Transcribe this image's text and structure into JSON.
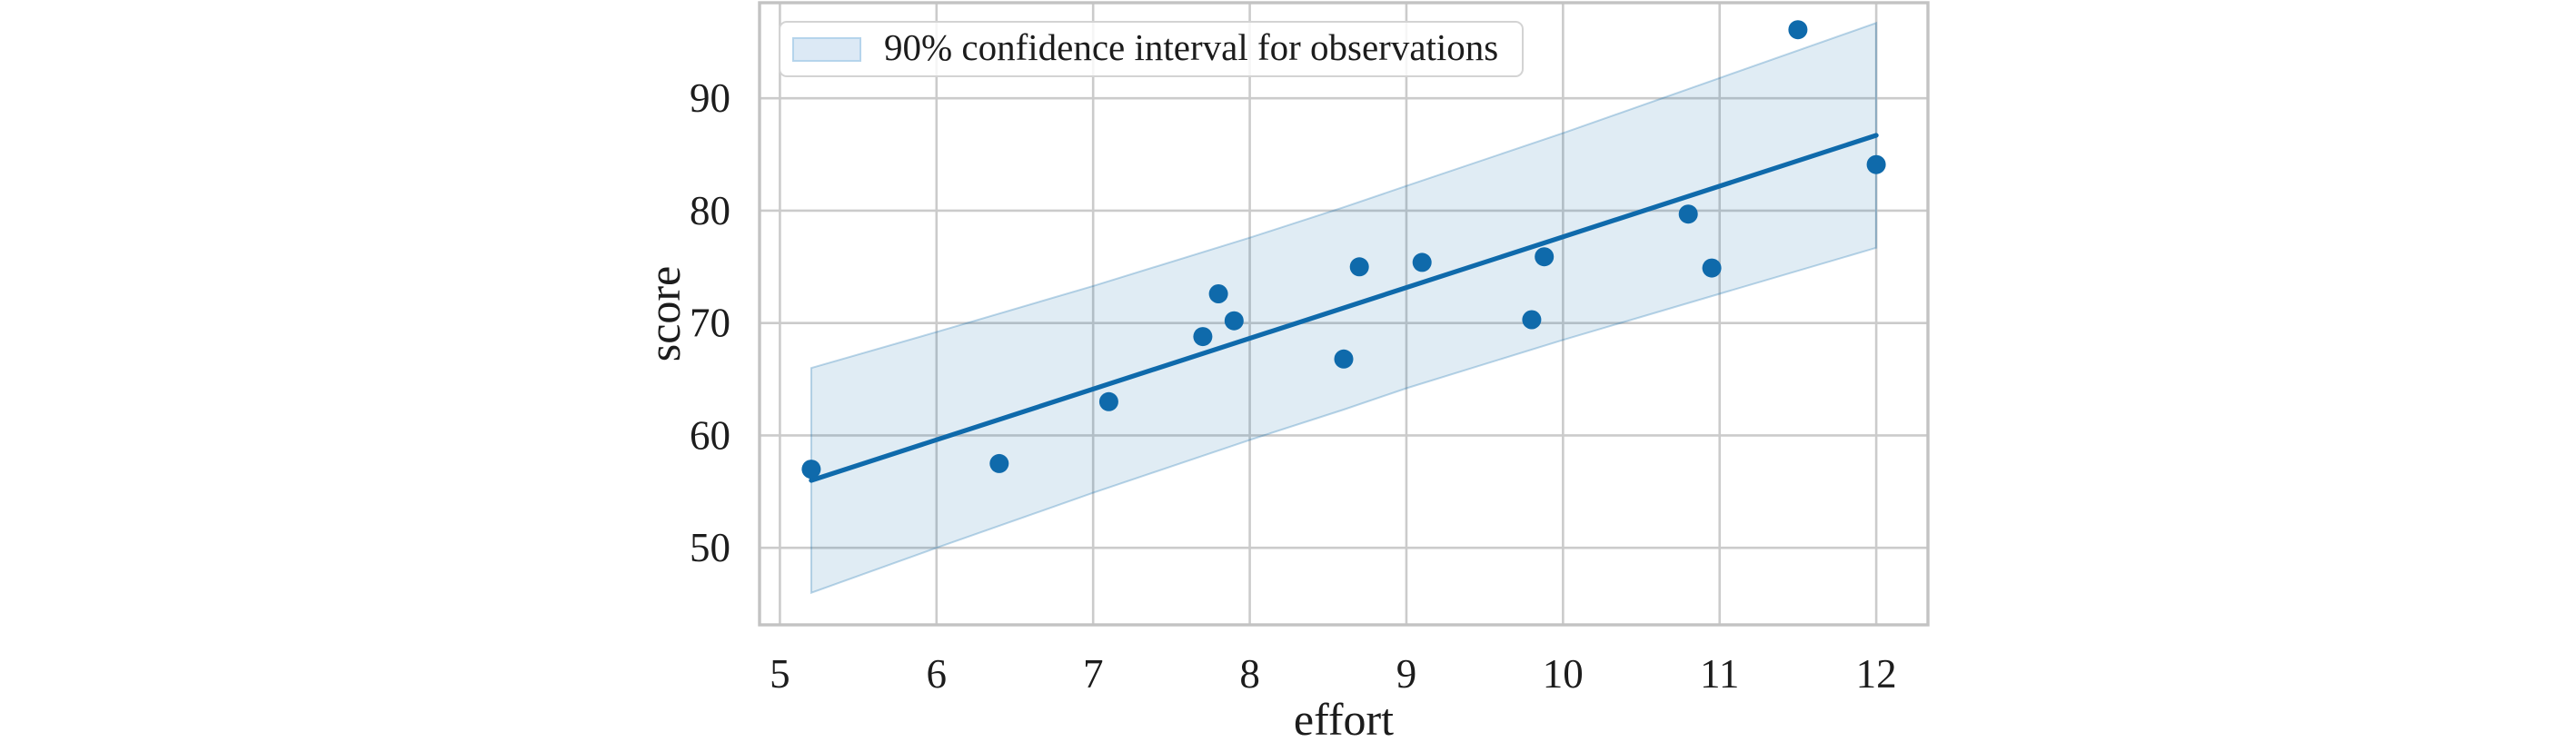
{
  "chart_data": {
    "type": "scatter",
    "title": "",
    "xlabel": "effort",
    "ylabel": "score",
    "xlim": [
      4.87,
      12.33
    ],
    "ylim": [
      43.15,
      98.5
    ],
    "xticks": [
      5,
      6,
      7,
      8,
      9,
      10,
      11,
      12
    ],
    "yticks": [
      50,
      60,
      70,
      80,
      90
    ],
    "grid": true,
    "legend": {
      "label": "90% confidence interval for observations",
      "position": "upper left"
    },
    "points": [
      [
        5.2,
        57.0
      ],
      [
        6.4,
        57.5
      ],
      [
        7.1,
        63.0
      ],
      [
        7.7,
        68.8
      ],
      [
        7.8,
        72.6
      ],
      [
        7.9,
        70.2
      ],
      [
        8.6,
        66.8
      ],
      [
        8.7,
        75.0
      ],
      [
        9.1,
        75.4
      ],
      [
        9.8,
        70.3
      ],
      [
        9.88,
        75.9
      ],
      [
        10.8,
        79.7
      ],
      [
        10.95,
        74.9
      ],
      [
        11.5,
        96.1
      ],
      [
        12.0,
        84.1
      ]
    ],
    "regression_line": {
      "x": [
        5.2,
        12.0
      ],
      "y": [
        56.0,
        86.7
      ]
    },
    "confidence_band": {
      "x": [
        5.2,
        6.0,
        7.0,
        8.0,
        8.6,
        9.0,
        10.0,
        11.0,
        12.0
      ],
      "upper": [
        66.0,
        69.2,
        73.3,
        77.6,
        80.3,
        82.2,
        86.9,
        91.8,
        96.7
      ],
      "lower": [
        46.0,
        50.0,
        54.9,
        59.6,
        62.3,
        64.2,
        68.5,
        72.6,
        76.7
      ]
    },
    "colors": {
      "accent": "#0f6aab",
      "band_fill": "rgba(15,106,171,0.13)",
      "band_edge": "rgba(15,106,171,0.28)",
      "grid": "#cbcbcb",
      "spine": "#c3c3c3",
      "text": "#1c1c1c",
      "background": "#ffffff",
      "legend_swatch_fill": "#dce9f5",
      "legend_swatch_border": "#b5d4ec",
      "legend_border": "#d3d3d3"
    }
  }
}
